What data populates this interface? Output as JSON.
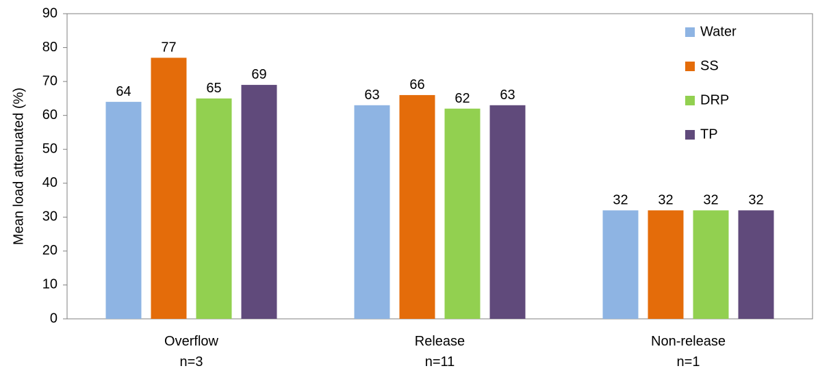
{
  "chart_data": {
    "type": "bar",
    "title": "",
    "xlabel": "",
    "ylabel": "Mean load attenuated (%)",
    "ylim": [
      0,
      90
    ],
    "yticks": [
      0,
      10,
      20,
      30,
      40,
      50,
      60,
      70,
      80,
      90
    ],
    "grid": false,
    "legend_position": "top-right",
    "categories": [
      "Overflow",
      "Release",
      "Non-release"
    ],
    "category_sublabels": [
      "n=3",
      "n=11",
      "n=1"
    ],
    "series": [
      {
        "name": "Water",
        "color": "#8EB4E3",
        "values": [
          64,
          63,
          32
        ]
      },
      {
        "name": "SS",
        "color": "#E46C0A",
        "values": [
          77,
          66,
          32
        ]
      },
      {
        "name": "DRP",
        "color": "#92D050",
        "values": [
          65,
          62,
          32
        ]
      },
      {
        "name": "TP",
        "color": "#604A7B",
        "values": [
          69,
          63,
          32
        ]
      }
    ]
  }
}
